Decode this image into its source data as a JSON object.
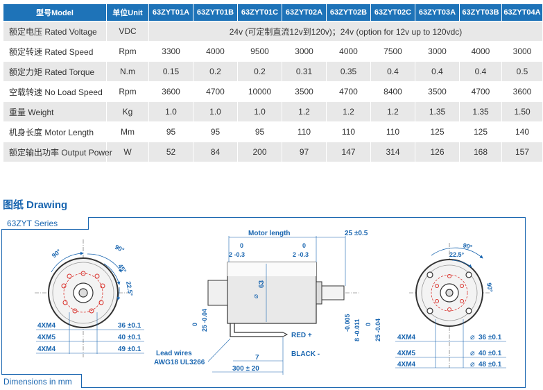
{
  "table": {
    "headers": [
      "型号Model",
      "单位Unit",
      "63ZYT01A",
      "63ZYT01B",
      "63ZYT01C",
      "63ZYT02A",
      "63ZYT02B",
      "63ZYT02C",
      "63ZYT03A",
      "63ZYT03B",
      "63ZYT04A"
    ],
    "voltage_row": {
      "param": "额定电压 Rated Voltage",
      "unit": "VDC",
      "value": "24v (可定制直流12v到120v)；24v (option for 12v up to 120vdc)"
    },
    "rows": [
      {
        "param": "额定转速 Rated Speed",
        "unit": "Rpm",
        "values": [
          "3300",
          "4000",
          "9500",
          "3000",
          "4000",
          "7500",
          "3000",
          "4000",
          "3000"
        ]
      },
      {
        "param": "额定力矩 Rated Torque",
        "unit": "N.m",
        "values": [
          "0.15",
          "0.2",
          "0.2",
          "0.31",
          "0.35",
          "0.4",
          "0.4",
          "0.4",
          "0.5"
        ]
      },
      {
        "param": "空载转速 No Load Speed",
        "unit": "Rpm",
        "values": [
          "3600",
          "4700",
          "10000",
          "3500",
          "4700",
          "8400",
          "3500",
          "4700",
          "3600"
        ]
      },
      {
        "param": "重量 Weight",
        "unit": "Kg",
        "values": [
          "1.0",
          "1.0",
          "1.0",
          "1.2",
          "1.2",
          "1.2",
          "1.35",
          "1.35",
          "1.50"
        ]
      },
      {
        "param": "机身长度 Motor Length",
        "unit": "Mm",
        "values": [
          "95",
          "95",
          "95",
          "110",
          "110",
          "110",
          "125",
          "125",
          "140"
        ]
      },
      {
        "param": "额定输出功率 Output Power",
        "unit": "W",
        "values": [
          "52",
          "84",
          "200",
          "97",
          "147",
          "314",
          "126",
          "168",
          "157"
        ]
      }
    ]
  },
  "drawing": {
    "title_cn": "图纸",
    "title_en": "Drawing",
    "series": "63ZYT Series",
    "units_note": "Dimensions in mm",
    "left_view": {
      "angle_90_a": "90°",
      "angle_90_b": "90°",
      "angle_45": "45°",
      "angle_22_5": "22.5°",
      "holes": [
        "4XM4",
        "4XM5",
        "4XM4"
      ],
      "diameters": [
        "36 ±0.1",
        "40 ±0.1",
        "49 ±0.1"
      ]
    },
    "side_view": {
      "motor_length": "Motor length",
      "shaft_len": "25 ±0.5",
      "tol_top_left_nom": "0",
      "tol_top_left": "2 -0.3",
      "tol_top_right_nom": "0",
      "tol_top_right": "2 -0.3",
      "body_dia": "63",
      "pilot_nom": "0",
      "pilot": "25 -0.04",
      "shaft_nom": "-0.005",
      "shaft": "8 -0.011",
      "pilot2_nom": "0",
      "pilot2": "25 -0.04",
      "red": "RED +",
      "black": "BLACK -",
      "lead_wires": "Lead wires",
      "awg": "AWG18 UL3266",
      "dim_7": "7",
      "dim_300": "300 ± 20"
    },
    "right_view": {
      "angle_90": "90°",
      "angle_22_5": "22.5°",
      "angle_90_side": "90°",
      "holes": [
        "4XM4",
        "4XM5",
        "4XM4"
      ],
      "diameters": [
        "36 ±0.1",
        "40 ±0.1",
        "48 ±0.1"
      ]
    }
  },
  "colors": {
    "header_blue": "#1e73b8",
    "title_blue": "#1a66b0",
    "row_grey": "#e8e8e8",
    "red_lines": "#d9312b"
  }
}
